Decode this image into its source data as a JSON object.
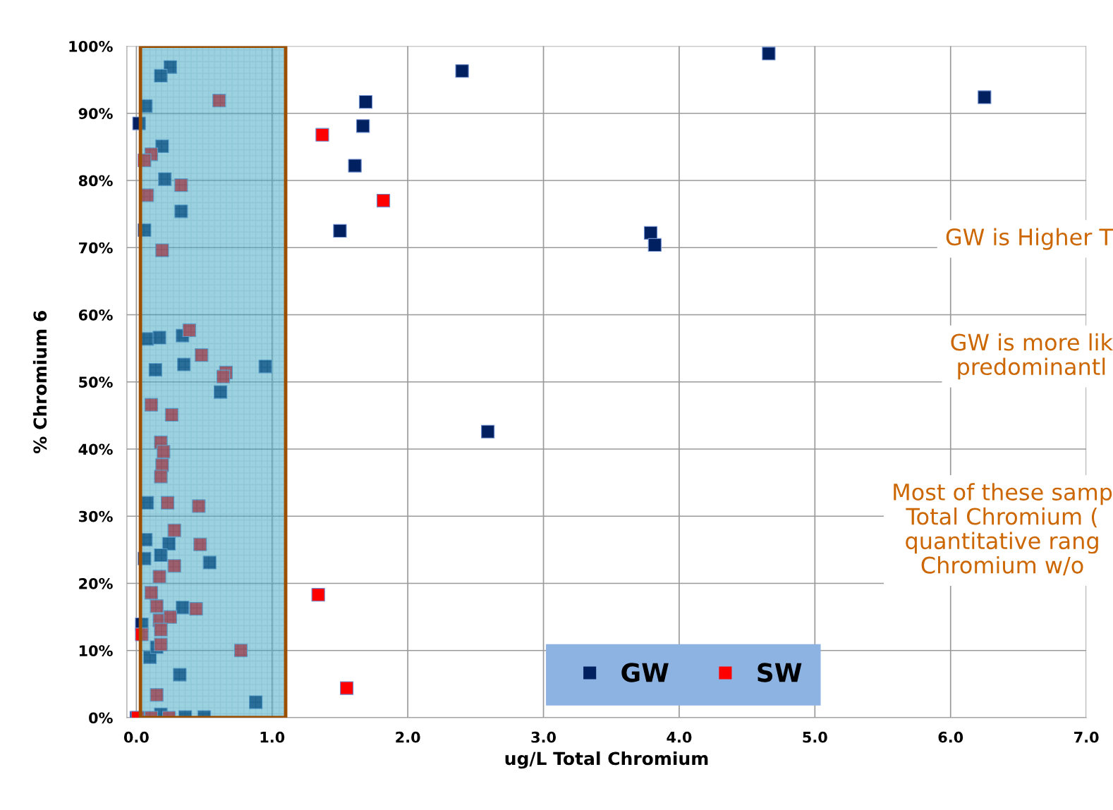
{
  "chart_data": {
    "type": "scatter",
    "xlabel": "ug/L Total Chromium",
    "ylabel": "% Chromium 6",
    "xlim": [
      -0.07,
      7.0
    ],
    "xticks": [
      {
        "value": 0,
        "label": "0.0"
      },
      {
        "value": 1,
        "label": "1.0"
      },
      {
        "value": 2,
        "label": "2.0"
      },
      {
        "value": 3,
        "label": "3.0"
      },
      {
        "value": 4,
        "label": "4.0"
      },
      {
        "value": 5,
        "label": "5.0"
      },
      {
        "value": 6,
        "label": "6.0"
      },
      {
        "value": 7,
        "label": "7.0"
      }
    ],
    "ylim": [
      0,
      100
    ],
    "yticks": [
      {
        "value": 0,
        "label": "0%"
      },
      {
        "value": 10,
        "label": "10%"
      },
      {
        "value": 20,
        "label": "20%"
      },
      {
        "value": 30,
        "label": "30%"
      },
      {
        "value": 40,
        "label": "40%"
      },
      {
        "value": 50,
        "label": "50%"
      },
      {
        "value": 60,
        "label": "60%"
      },
      {
        "value": 70,
        "label": "70%"
      },
      {
        "value": 80,
        "label": "80%"
      },
      {
        "value": 90,
        "label": "90%"
      },
      {
        "value": 100,
        "label": "100%"
      }
    ],
    "grid": true,
    "legend": "bottom",
    "marker": "square",
    "series": [
      {
        "name": "GW",
        "color": "#002060",
        "x": [
          0.25,
          0.18,
          0.07,
          0.02,
          0.19,
          0.21,
          0.33,
          0.06,
          0.08,
          0.17,
          0.34,
          0.35,
          0.14,
          0.95,
          0.62,
          0.08,
          0.07,
          0.24,
          0.18,
          0.06,
          0.54,
          0.34,
          0.04,
          0.1,
          0.15,
          0.32,
          0.88,
          0.18,
          0.36,
          0.5,
          0.0,
          2.4,
          1.69,
          1.67,
          1.61,
          1.5,
          4.66,
          6.25,
          3.79,
          3.82,
          2.59
        ],
        "values": [
          96.9,
          95.6,
          91.1,
          88.5,
          85.1,
          80.2,
          75.4,
          72.6,
          56.4,
          56.6,
          56.9,
          52.6,
          51.8,
          52.3,
          48.5,
          32.0,
          26.5,
          25.9,
          24.2,
          23.7,
          23.1,
          16.4,
          13.9,
          9.0,
          10.5,
          6.4,
          2.3,
          0.5,
          0.1,
          0.1,
          0.0,
          96.3,
          91.7,
          88.1,
          82.2,
          72.5,
          98.9,
          92.4,
          72.2,
          70.4,
          42.6
        ]
      },
      {
        "name": "SW",
        "color": "#ff0000",
        "x": [
          0.61,
          0.11,
          0.06,
          0.08,
          0.33,
          0.19,
          0.39,
          0.48,
          0.66,
          0.64,
          0.11,
          0.26,
          0.18,
          0.2,
          0.19,
          0.18,
          0.23,
          0.46,
          0.28,
          0.47,
          0.28,
          0.17,
          0.11,
          0.15,
          0.44,
          0.17,
          0.25,
          0.18,
          0.04,
          0.18,
          0.77,
          0.15,
          0.01,
          0.11,
          0.24,
          1.37,
          1.82,
          1.34,
          1.55
        ],
        "values": [
          91.9,
          83.9,
          83.0,
          77.8,
          79.3,
          69.6,
          57.7,
          54.0,
          51.4,
          50.8,
          46.6,
          45.1,
          41.0,
          39.6,
          37.6,
          35.9,
          32.0,
          31.5,
          27.9,
          25.8,
          22.6,
          21.0,
          18.6,
          16.6,
          16.2,
          14.5,
          15.0,
          13.1,
          12.4,
          10.9,
          10.0,
          3.4,
          0.0,
          0.0,
          0.0,
          86.8,
          77.0,
          18.3,
          4.4
        ]
      }
    ],
    "bands": [
      {
        "axis": "x",
        "from": 0.03,
        "to": 1.1,
        "color": "#4bacc6"
      }
    ],
    "annotations": [
      "GW is Higher T",
      "GW is more lik\npredominantl",
      "Most of these samp\nTotal Chromium (\nquantitative rang\nChromium w/o"
    ]
  }
}
